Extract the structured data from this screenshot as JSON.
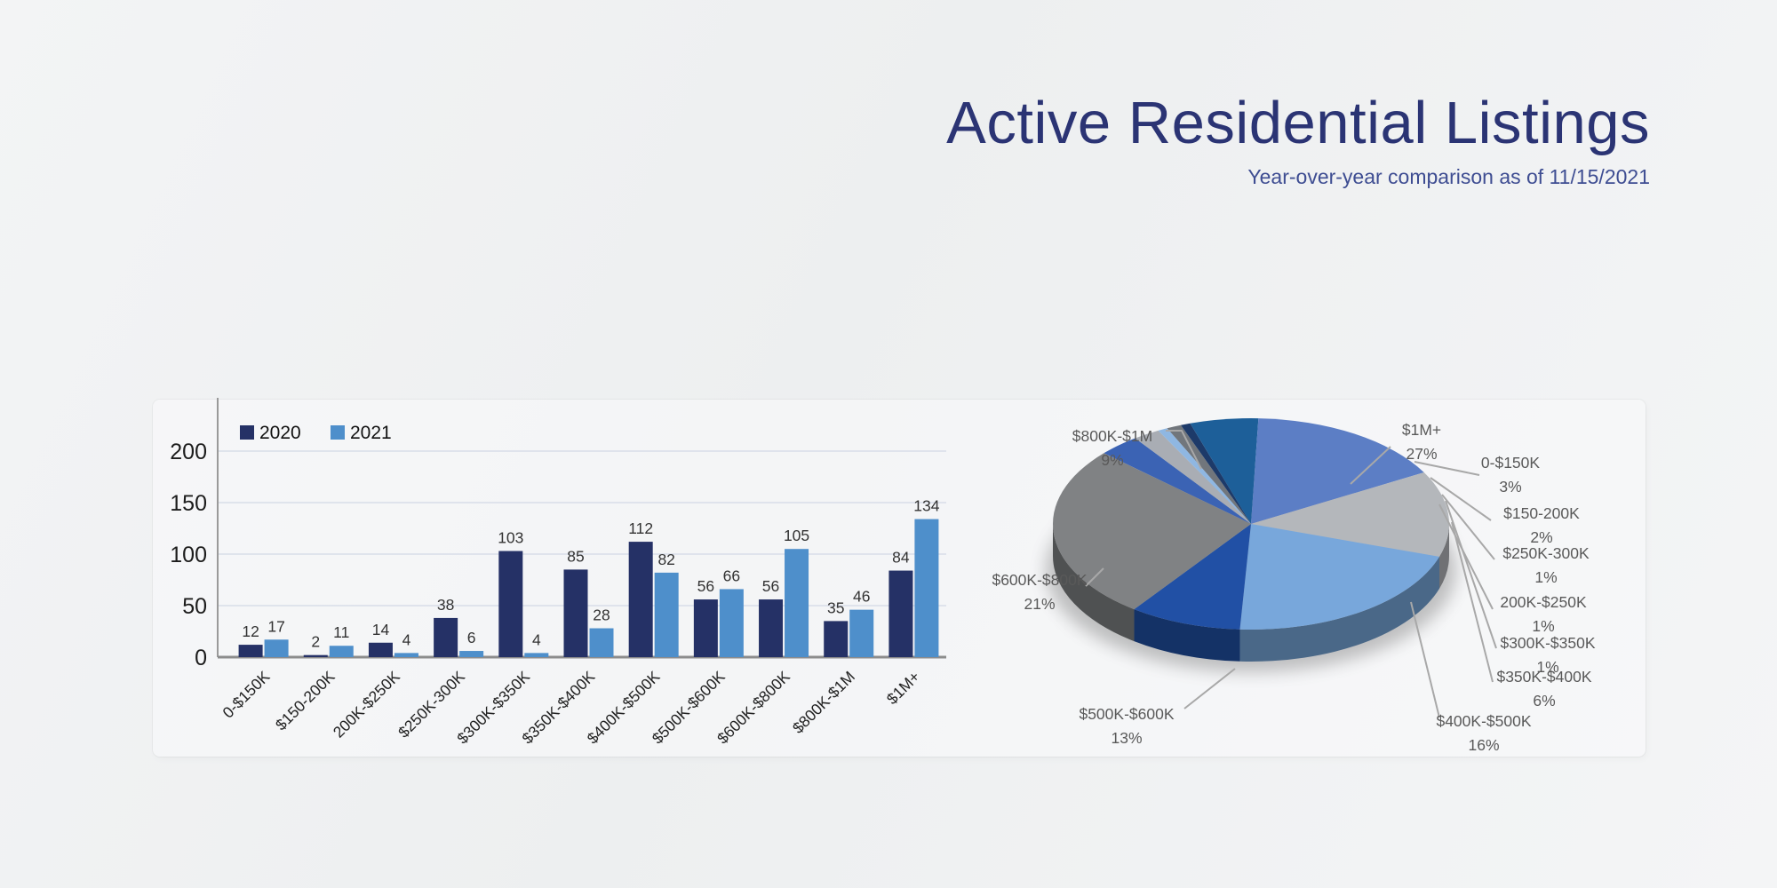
{
  "page": {
    "title": "Active Residential Listings",
    "subtitle": "Year-over-year comparison as of 11/15/2021"
  },
  "chart_data": [
    {
      "type": "bar",
      "title": "",
      "categories": [
        "0-$150K",
        "$150-200K",
        "200K-$250K",
        "$250K-300K",
        "$300K-$350K",
        "$350K-$400K",
        "$400K-$500K",
        "$500K-$600K",
        "$600K-$800K",
        "$800K-$1M",
        "$1M+"
      ],
      "series": [
        {
          "name": "2020",
          "color": "#253166",
          "values": [
            12,
            2,
            14,
            38,
            103,
            85,
            112,
            56,
            56,
            35,
            84
          ]
        },
        {
          "name": "2021",
          "color": "#4e8fcb",
          "values": [
            17,
            11,
            4,
            6,
            4,
            28,
            82,
            66,
            105,
            46,
            134
          ]
        }
      ],
      "ylabel": "",
      "xlabel": "",
      "ylim": [
        0,
        240
      ],
      "yticks": [
        0,
        50,
        100,
        150,
        200
      ],
      "grid": true,
      "legend_position": "top-left",
      "grid_color": "#d8dde8",
      "axis_color": "#8c8c8c",
      "label_color": "#333333"
    },
    {
      "type": "pie",
      "effect": "3d",
      "labels": [
        "0-$150K",
        "$150-200K",
        "200K-$250K",
        "$250K-300K",
        "$300K-$350K",
        "$350K-$400K",
        "$400K-$500K",
        "$500K-$600K",
        "$600K-$800K",
        "$800K-$1M",
        "$1M+"
      ],
      "values": [
        17,
        11,
        4,
        6,
        4,
        28,
        82,
        66,
        105,
        46,
        134
      ],
      "percent_labels": [
        "3%",
        "2%",
        "1%",
        "1%",
        "1%",
        "6%",
        "16%",
        "13%",
        "21%",
        "9%",
        "27%"
      ],
      "colors": [
        "#3b63b4",
        "#a9adb4",
        "#8fb7e2",
        "#71767c",
        "#1d3a69",
        "#1d5f99",
        "#5c7ec5",
        "#b4b7bb",
        "#78a7db",
        "#2150a5",
        "#808284"
      ],
      "leader_color": "#a8a8a8",
      "label_color": "#595959"
    }
  ]
}
